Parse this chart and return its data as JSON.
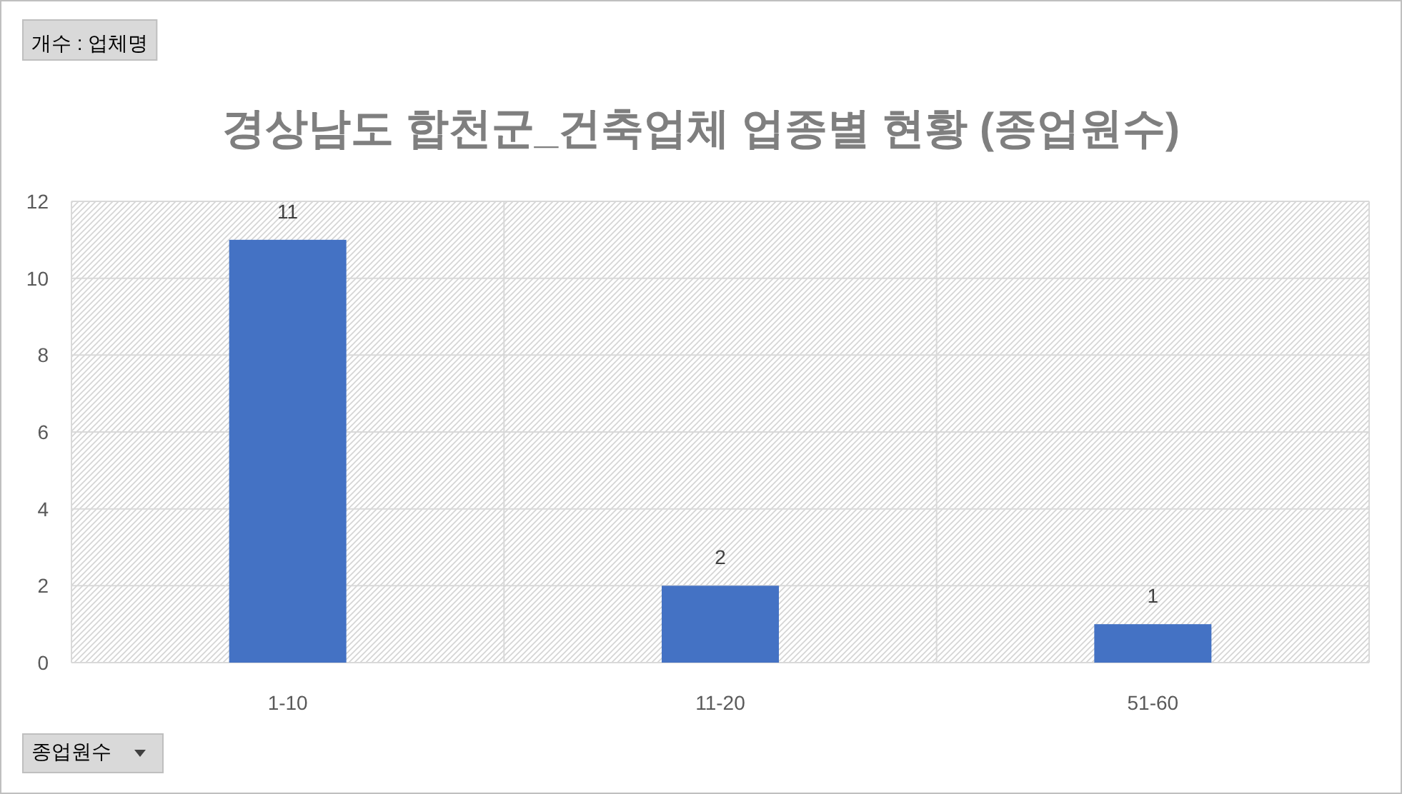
{
  "chart_data": {
    "type": "bar",
    "title": "경상남도 합천군_건축업체 업종별 현황 (종업원수)",
    "annotations": [
      "개수 : 업체명"
    ],
    "xlabel": "종업원수",
    "categories": [
      "1-10",
      "11-20",
      "51-60"
    ],
    "series": [
      {
        "color": "#4472c4",
        "values": [
          11,
          2,
          1
        ]
      }
    ],
    "ylim": [
      0,
      12
    ],
    "yticks": [
      0,
      2,
      4,
      6,
      8,
      10,
      12
    ],
    "grid": true,
    "data_labels": true
  }
}
